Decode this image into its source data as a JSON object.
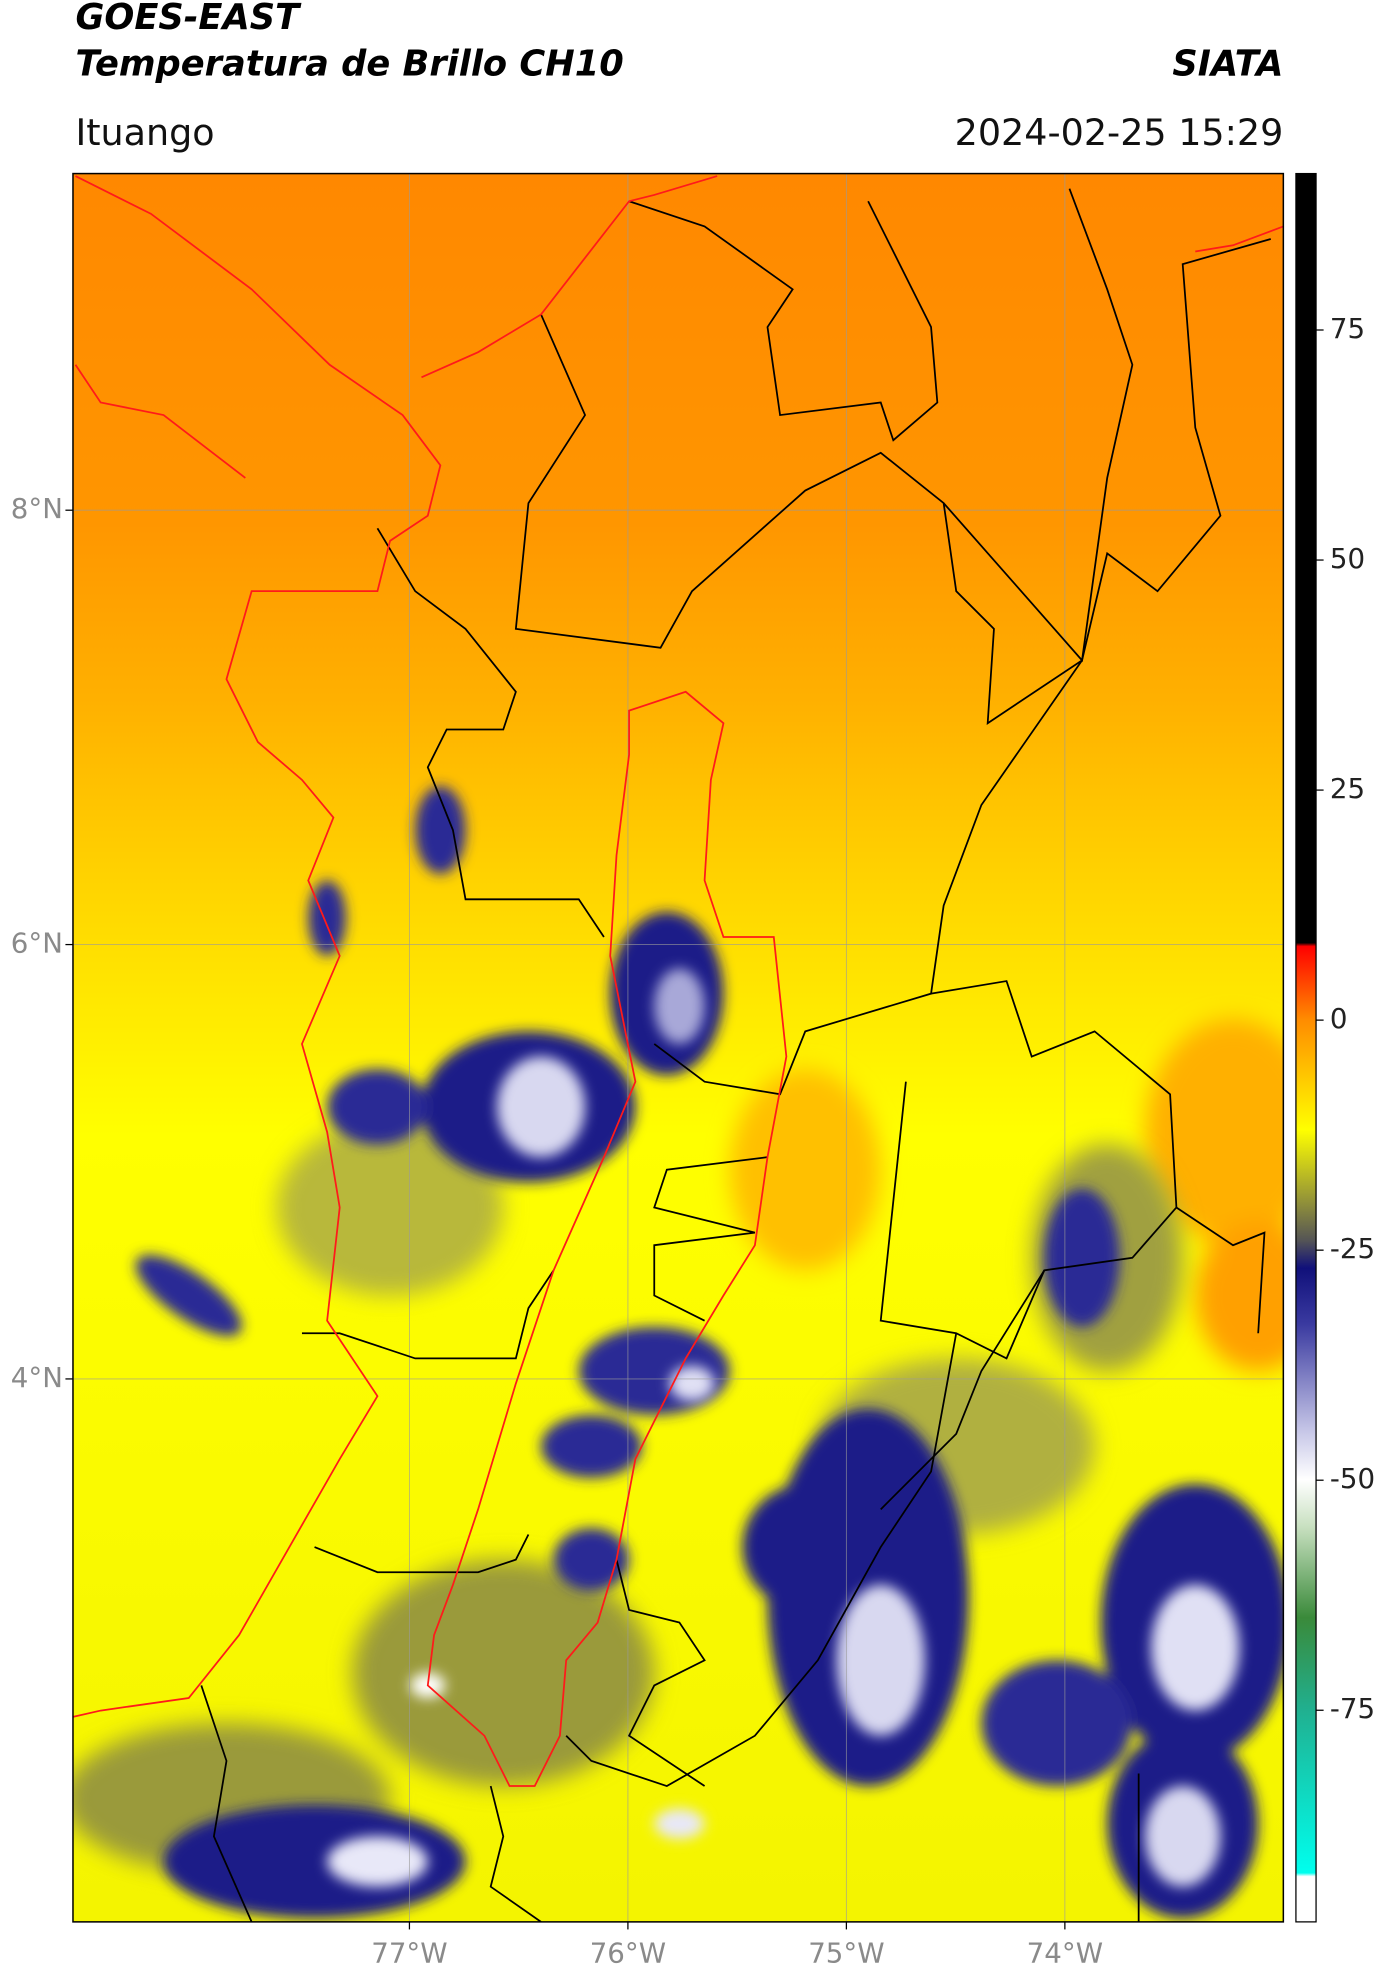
{
  "header": {
    "source": "GOES-EAST",
    "product": "Temperatura de Brillo CH10",
    "brand": "SIATA",
    "location": "Ituango",
    "timestamp": "2024-02-25 15:29"
  },
  "map": {
    "xlim": [
      -78.54,
      -73.0
    ],
    "ylim": [
      1.5,
      9.55
    ],
    "xticks": [
      {
        "value": -77,
        "label": "77°W"
      },
      {
        "value": -76,
        "label": "76°W"
      },
      {
        "value": -75,
        "label": "75°W"
      },
      {
        "value": -74,
        "label": "74°W"
      }
    ],
    "yticks": [
      {
        "value": 4,
        "label": "4°N"
      },
      {
        "value": 6,
        "label": "6°N"
      },
      {
        "value": 8,
        "label": "8°N"
      }
    ],
    "grid": true
  },
  "colorbar": {
    "lim": [
      -98,
      92
    ],
    "ticks": [
      -75,
      -50,
      -25,
      0,
      25,
      50,
      75
    ]
  }
}
